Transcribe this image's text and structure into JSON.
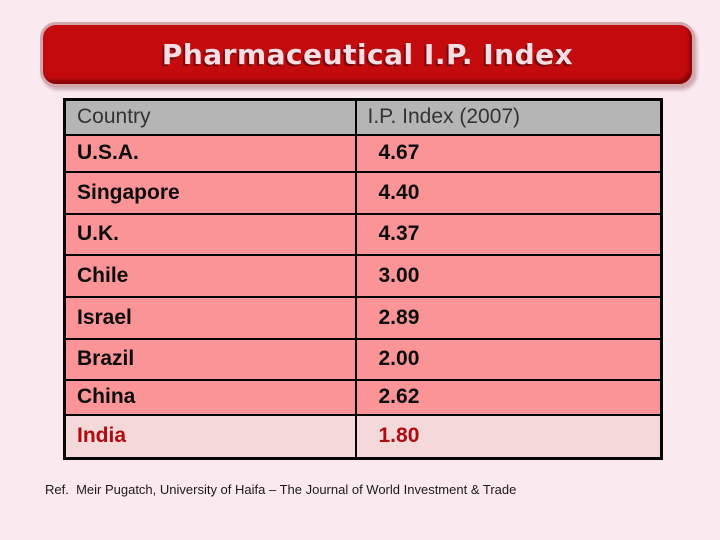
{
  "slide": {
    "title": "Pharmaceutical I.P. Index",
    "reference": "Ref.  Meir Pugatch, University of Haifa – The Journal of World Investment & Trade"
  },
  "table": {
    "columns": [
      "Country",
      "I.P. Index (2007)"
    ],
    "rows": [
      {
        "country": "U.S.A.",
        "value": "4.67"
      },
      {
        "country": "Singapore",
        "value": "4.40"
      },
      {
        "country": "U.K.",
        "value": "4.37"
      },
      {
        "country": "Chile",
        "value": "3.00"
      },
      {
        "country": "Israel",
        "value": "2.89"
      },
      {
        "country": "Brazil",
        "value": "2.00"
      },
      {
        "country": "China",
        "value": "2.62"
      },
      {
        "country": "India",
        "value": "1.80"
      }
    ],
    "highlighted_row": "India"
  },
  "chart_data": {
    "type": "table",
    "title": "Pharmaceutical I.P. Index",
    "columns": [
      "Country",
      "I.P. Index (2007)"
    ],
    "categories": [
      "U.S.A.",
      "Singapore",
      "U.K.",
      "Chile",
      "Israel",
      "Brazil",
      "China",
      "India"
    ],
    "values": [
      4.67,
      4.4,
      4.37,
      3.0,
      2.89,
      2.0,
      2.62,
      1.8
    ]
  },
  "colors": {
    "slide_background": "#fbe9f0",
    "banner_red": "#c30b0e",
    "banner_text": "#f7dde4",
    "banner_text_shadow": "#7a070c",
    "header_gray": "#b5b5b5",
    "row_salmon": "#fa9497",
    "highlight_row_pink": "#f5d8da",
    "highlight_text_red": "#ae0c10",
    "table_border": "#050505"
  }
}
